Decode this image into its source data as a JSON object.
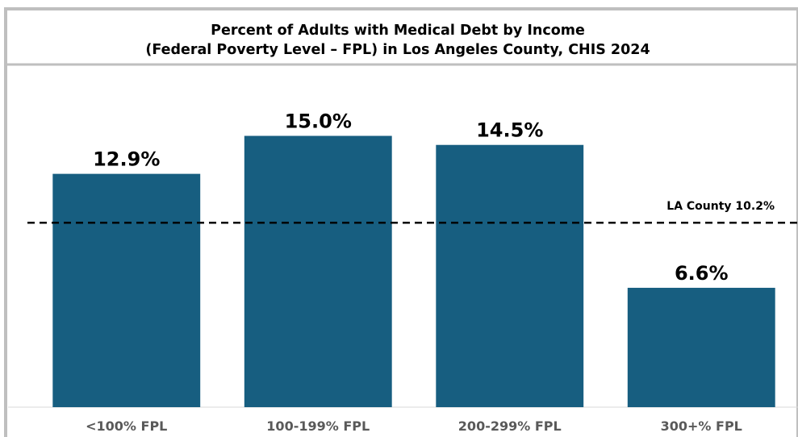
{
  "chart_data": {
    "type": "bar",
    "title": "Percent of Adults with Medical Debt by Income",
    "subtitle": "(Federal Poverty Level – FPL) in Los Angeles County, CHIS 2024",
    "categories": [
      "<100% FPL",
      "100-199% FPL",
      "200-299% FPL",
      "300+% FPL"
    ],
    "values": [
      12.9,
      15.0,
      14.5,
      6.6
    ],
    "value_labels": [
      "12.9%",
      "15.0%",
      "14.5%",
      "6.6%"
    ],
    "ylim": [
      0,
      18.5
    ],
    "grid": false,
    "reference_line": {
      "value": 10.2,
      "label": "LA County 10.2%",
      "style": "dashed"
    },
    "colors": {
      "bar": "#175e80",
      "frame": "#bfbfbf",
      "category_text": "#595959"
    }
  }
}
